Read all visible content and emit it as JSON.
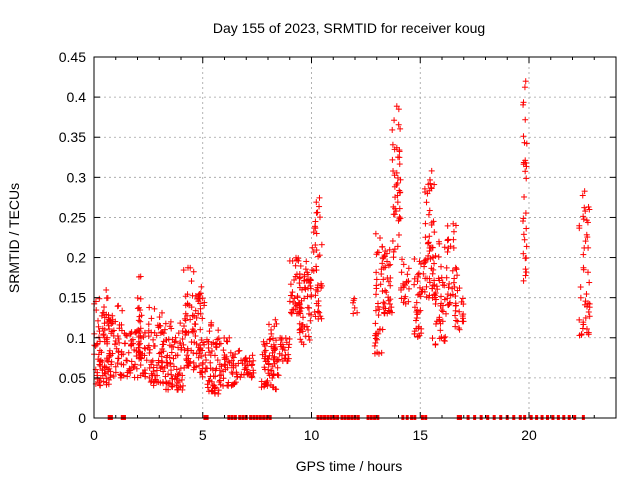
{
  "chart_data": {
    "type": "scatter",
    "title": "Day 155 of 2023, SRMTID for receiver koug",
    "xlabel": "GPS time / hours",
    "ylabel": "SRMTID / TECUs",
    "xlim": [
      0,
      24
    ],
    "ylim": [
      0,
      0.45
    ],
    "xticks": [
      0,
      5,
      10,
      15,
      20
    ],
    "xtick_labels": [
      "0",
      "5",
      "10",
      "15",
      "20"
    ],
    "yticks": [
      0,
      0.05,
      0.1,
      0.15,
      0.2,
      0.25,
      0.3,
      0.35,
      0.4,
      0.45
    ],
    "ytick_labels": [
      "0",
      "0.05",
      "0.1",
      "0.15",
      "0.2",
      "0.25",
      "0.3",
      "0.35",
      "0.4",
      "0.45"
    ],
    "grid": true,
    "marker": "plus",
    "color": "#ff0000",
    "clusters": [
      {
        "x": [
          0.0,
          0.7
        ],
        "y": [
          0.04,
          0.16
        ],
        "n": 80,
        "seed": 1
      },
      {
        "x": [
          0.7,
          1.5
        ],
        "y": [
          0.05,
          0.14
        ],
        "n": 60,
        "seed": 2
      },
      {
        "x": [
          1.5,
          2.4
        ],
        "y": [
          0.05,
          0.11
        ],
        "n": 60,
        "seed": 3
      },
      {
        "x": [
          2.0,
          2.2
        ],
        "y": [
          0.08,
          0.185
        ],
        "n": 20,
        "seed": 4
      },
      {
        "x": [
          2.4,
          3.3
        ],
        "y": [
          0.04,
          0.14
        ],
        "n": 70,
        "seed": 5
      },
      {
        "x": [
          3.3,
          4.1
        ],
        "y": [
          0.035,
          0.12
        ],
        "n": 70,
        "seed": 6
      },
      {
        "x": [
          4.1,
          4.6
        ],
        "y": [
          0.06,
          0.195
        ],
        "n": 50,
        "seed": 7
      },
      {
        "x": [
          4.6,
          5.1
        ],
        "y": [
          0.05,
          0.165
        ],
        "n": 50,
        "seed": 8
      },
      {
        "x": [
          5.1,
          5.8
        ],
        "y": [
          0.03,
          0.12
        ],
        "n": 60,
        "seed": 9
      },
      {
        "x": [
          5.8,
          6.7
        ],
        "y": [
          0.04,
          0.1
        ],
        "n": 50,
        "seed": 10
      },
      {
        "x": [
          6.7,
          7.4
        ],
        "y": [
          0.05,
          0.08
        ],
        "n": 30,
        "seed": 11
      },
      {
        "x": [
          7.7,
          8.4
        ],
        "y": [
          0.035,
          0.11
        ],
        "n": 50,
        "seed": 12
      },
      {
        "x": [
          8.0,
          8.5
        ],
        "y": [
          0.05,
          0.125
        ],
        "n": 20,
        "seed": 13
      },
      {
        "x": [
          8.5,
          9.0
        ],
        "y": [
          0.07,
          0.1
        ],
        "n": 25,
        "seed": 14
      },
      {
        "x": [
          9.0,
          9.5
        ],
        "y": [
          0.13,
          0.2
        ],
        "n": 40,
        "seed": 15
      },
      {
        "x": [
          9.4,
          10.0
        ],
        "y": [
          0.09,
          0.195
        ],
        "n": 40,
        "seed": 16
      },
      {
        "x": [
          9.6,
          10.0
        ],
        "y": [
          0.16,
          0.2
        ],
        "n": 15,
        "seed": 17
      },
      {
        "x": [
          10.0,
          10.5
        ],
        "y": [
          0.12,
          0.22
        ],
        "n": 30,
        "seed": 18
      },
      {
        "x": [
          10.1,
          10.4
        ],
        "y": [
          0.23,
          0.275
        ],
        "n": 12,
        "seed": 19
      },
      {
        "x": [
          11.9,
          12.1
        ],
        "y": [
          0.13,
          0.15
        ],
        "n": 6,
        "seed": 20
      },
      {
        "x": [
          12.9,
          13.3
        ],
        "y": [
          0.08,
          0.23
        ],
        "n": 40,
        "seed": 21
      },
      {
        "x": [
          13.3,
          13.7
        ],
        "y": [
          0.13,
          0.21
        ],
        "n": 35,
        "seed": 22
      },
      {
        "x": [
          13.7,
          14.1
        ],
        "y": [
          0.2,
          0.4
        ],
        "n": 45,
        "seed": 23
      },
      {
        "x": [
          14.1,
          14.5
        ],
        "y": [
          0.14,
          0.21
        ],
        "n": 20,
        "seed": 24
      },
      {
        "x": [
          14.7,
          15.2
        ],
        "y": [
          0.1,
          0.2
        ],
        "n": 40,
        "seed": 25
      },
      {
        "x": [
          15.2,
          15.7
        ],
        "y": [
          0.15,
          0.31
        ],
        "n": 50,
        "seed": 26
      },
      {
        "x": [
          15.5,
          16.2
        ],
        "y": [
          0.09,
          0.22
        ],
        "n": 50,
        "seed": 27
      },
      {
        "x": [
          16.2,
          16.7
        ],
        "y": [
          0.14,
          0.245
        ],
        "n": 35,
        "seed": 28
      },
      {
        "x": [
          16.6,
          17.0
        ],
        "y": [
          0.11,
          0.17
        ],
        "n": 20,
        "seed": 29
      },
      {
        "x": [
          19.7,
          19.9
        ],
        "y": [
          0.17,
          0.44
        ],
        "n": 30,
        "seed": 30
      },
      {
        "x": [
          22.3,
          22.8
        ],
        "y": [
          0.1,
          0.29
        ],
        "n": 45,
        "seed": 31
      }
    ],
    "zero_markers_x": [
      0.7,
      0.8,
      1.3,
      1.4,
      5.1,
      5.2,
      6.2,
      6.35,
      6.5,
      6.7,
      6.85,
      7.0,
      7.2,
      7.35,
      7.5,
      7.65,
      7.8,
      7.95,
      8.1,
      10.3,
      10.45,
      10.6,
      10.75,
      10.9,
      11.05,
      11.2,
      11.4,
      11.55,
      11.7,
      11.85,
      12.0,
      12.15,
      12.6,
      12.75,
      12.9,
      13.05,
      14.2,
      14.4,
      14.6,
      14.75,
      15.1,
      15.25,
      16.75,
      16.85,
      17.2,
      17.5,
      17.8,
      18.1,
      18.4,
      18.7,
      19.0,
      19.3,
      19.6,
      19.8,
      20.1,
      20.35,
      20.6,
      20.85,
      21.1,
      21.35,
      21.6,
      21.85,
      22.1,
      22.5
    ]
  }
}
